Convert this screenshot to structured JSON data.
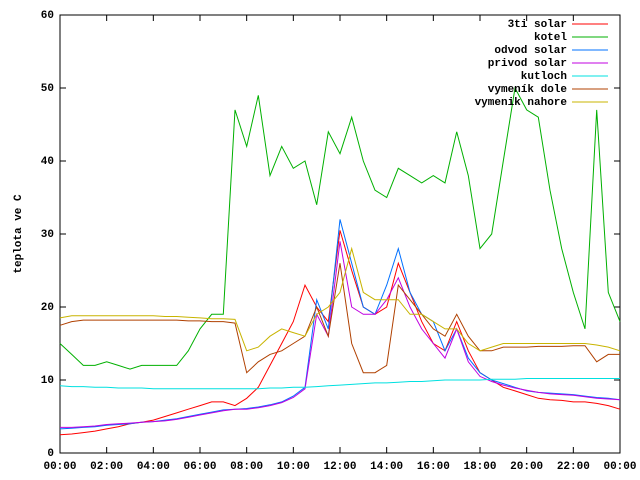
{
  "chart_data": {
    "type": "line",
    "y_label": "teplota ve C",
    "x": [
      0,
      0.5,
      1,
      1.5,
      2,
      2.5,
      3,
      3.5,
      4,
      4.5,
      5,
      5.5,
      6,
      6.5,
      7,
      7.5,
      8,
      8.5,
      9,
      9.5,
      10,
      10.5,
      11,
      11.5,
      12,
      12.5,
      13,
      13.5,
      14,
      14.5,
      15,
      15.5,
      16,
      16.5,
      17,
      17.5,
      18,
      18.5,
      19,
      19.5,
      20,
      20.5,
      21,
      21.5,
      22,
      22.5,
      23,
      23.5,
      24
    ],
    "xlim": [
      0,
      24
    ],
    "xticks": [
      {
        "value": 0,
        "label": "00:00"
      },
      {
        "value": 2,
        "label": "02:00"
      },
      {
        "value": 4,
        "label": "04:00"
      },
      {
        "value": 6,
        "label": "06:00"
      },
      {
        "value": 8,
        "label": "08:00"
      },
      {
        "value": 10,
        "label": "10:00"
      },
      {
        "value": 12,
        "label": "12:00"
      },
      {
        "value": 14,
        "label": "14:00"
      },
      {
        "value": 16,
        "label": "16:00"
      },
      {
        "value": 18,
        "label": "18:00"
      },
      {
        "value": 20,
        "label": "20:00"
      },
      {
        "value": 22,
        "label": "22:00"
      },
      {
        "value": 24,
        "label": "00:00"
      }
    ],
    "ylim": [
      0,
      60
    ],
    "yticks": [
      0,
      10,
      20,
      30,
      40,
      50,
      60
    ],
    "legend": "top-right",
    "series": [
      {
        "name": "3ti solar",
        "color": "#ff0000",
        "values": [
          2.5,
          2.6,
          2.8,
          3,
          3.3,
          3.6,
          4,
          4.2,
          4.5,
          5,
          5.5,
          6,
          6.5,
          7,
          7,
          6.5,
          7.5,
          9,
          12,
          15,
          18,
          23,
          20,
          18,
          30.5,
          25,
          20,
          19,
          20,
          26,
          22,
          18,
          15,
          14,
          18,
          14,
          11,
          10,
          9,
          8.5,
          8,
          7.5,
          7.3,
          7.2,
          7,
          7,
          6.8,
          6.5,
          6
        ]
      },
      {
        "name": "kotel",
        "color": "#00b000",
        "values": [
          15,
          13.5,
          12,
          12,
          12.5,
          12,
          11.5,
          12,
          12,
          12,
          12,
          14,
          17,
          19,
          19,
          47,
          42,
          49,
          38,
          42,
          39,
          40,
          34,
          44,
          41,
          46,
          40,
          36,
          35,
          39,
          38,
          37,
          38,
          37,
          44,
          38,
          28,
          30,
          40,
          50,
          47,
          46,
          36,
          28,
          22,
          17,
          47,
          22,
          18
        ]
      },
      {
        "name": "odvod solar",
        "color": "#0070ff",
        "values": [
          3.3,
          3.4,
          3.5,
          3.6,
          3.8,
          3.9,
          4,
          4.2,
          4.3,
          4.5,
          4.7,
          5,
          5.3,
          5.6,
          5.9,
          6,
          6.1,
          6.3,
          6.6,
          7,
          7.8,
          9,
          21,
          17,
          32,
          26,
          20,
          19,
          23,
          28,
          22,
          19,
          18,
          14,
          17,
          13,
          11,
          10,
          9.5,
          9,
          8.5,
          8.3,
          8.2,
          8.1,
          8,
          7.8,
          7.6,
          7.5,
          7.3
        ]
      },
      {
        "name": "privod solar",
        "color": "#c000e0",
        "values": [
          3.5,
          3.5,
          3.6,
          3.7,
          3.9,
          4,
          4.1,
          4.2,
          4.3,
          4.4,
          4.6,
          4.9,
          5.2,
          5.5,
          5.8,
          6,
          6,
          6.2,
          6.5,
          6.9,
          7.6,
          8.8,
          19,
          16,
          29,
          20,
          19,
          19,
          21,
          24,
          20,
          17,
          15,
          13,
          17,
          12.5,
          10.5,
          9.8,
          9.3,
          8.9,
          8.6,
          8.3,
          8.1,
          8,
          7.9,
          7.7,
          7.5,
          7.4,
          7.3
        ]
      },
      {
        "name": "kutloch",
        "color": "#00e0e0",
        "values": [
          9.2,
          9.1,
          9.1,
          9,
          9,
          8.9,
          8.9,
          8.9,
          8.8,
          8.8,
          8.8,
          8.8,
          8.8,
          8.8,
          8.8,
          8.8,
          8.8,
          8.8,
          8.9,
          8.9,
          9,
          9,
          9.1,
          9.2,
          9.3,
          9.4,
          9.5,
          9.6,
          9.6,
          9.7,
          9.8,
          9.8,
          9.9,
          10,
          10,
          10,
          10,
          10.1,
          10.1,
          10.1,
          10.2,
          10.2,
          10.2,
          10.2,
          10.2,
          10.2,
          10.2,
          10.2,
          10.2
        ]
      },
      {
        "name": "vymeník dole",
        "color": "#b04000",
        "values": [
          17.5,
          18,
          18.2,
          18.2,
          18.2,
          18.2,
          18.2,
          18.2,
          18.2,
          18.2,
          18.2,
          18.1,
          18.1,
          18,
          18,
          17.8,
          11,
          12.5,
          13.5,
          14,
          15,
          16,
          20,
          16,
          26,
          15,
          11,
          11,
          12,
          23,
          21,
          19,
          17,
          16,
          19,
          16,
          14,
          14,
          14.5,
          14.5,
          14.5,
          14.6,
          14.6,
          14.6,
          14.7,
          14.7,
          12.5,
          13.5,
          13.5
        ]
      },
      {
        "name": "vymenik nahore",
        "color": "#c8b400",
        "values": [
          18.5,
          18.8,
          18.8,
          18.8,
          18.8,
          18.8,
          18.8,
          18.8,
          18.8,
          18.7,
          18.7,
          18.6,
          18.5,
          18.4,
          18.4,
          18.3,
          14,
          14.5,
          16,
          17,
          16.5,
          16,
          19,
          20,
          22,
          28,
          22,
          21,
          21,
          21,
          19,
          19,
          18,
          17,
          17,
          15,
          14,
          14.5,
          15,
          15,
          15,
          15,
          15,
          15,
          15,
          15,
          14.8,
          14.5,
          14
        ]
      }
    ]
  }
}
